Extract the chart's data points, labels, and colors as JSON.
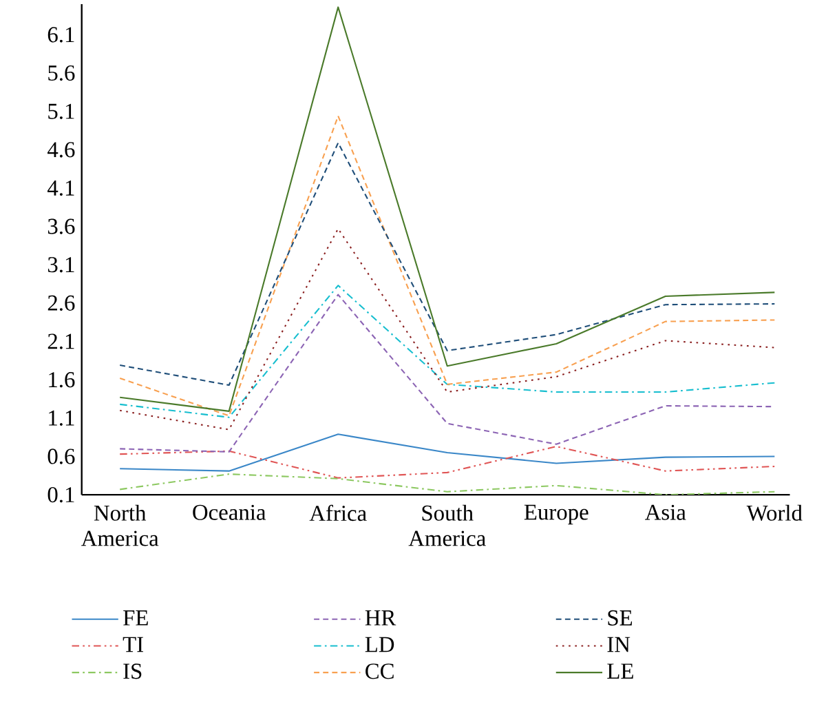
{
  "chart_data": {
    "type": "line",
    "categories": [
      "North America",
      "Oceania",
      "Africa",
      "South America",
      "Europe",
      "Asia",
      "World"
    ],
    "ylim": [
      0.1,
      6.5
    ],
    "yticks": [
      0.1,
      0.6,
      1.1,
      1.6,
      2.1,
      2.6,
      3.1,
      3.6,
      4.1,
      4.6,
      5.1,
      5.6,
      6.1
    ],
    "grid": false,
    "legend": "bottom",
    "marker": "none",
    "series": [
      {
        "name": "FE",
        "color": "#3a87c8",
        "line_style": "solid",
        "values": [
          0.44,
          0.41,
          0.89,
          0.65,
          0.51,
          0.59,
          0.6
        ]
      },
      {
        "name": "TI",
        "color": "#e05555",
        "line_style": "dashdotdot",
        "values": [
          0.63,
          0.67,
          0.32,
          0.39,
          0.73,
          0.41,
          0.47
        ]
      },
      {
        "name": "IS",
        "color": "#8cc860",
        "line_style": "dashdot",
        "values": [
          0.17,
          0.37,
          0.31,
          0.14,
          0.22,
          0.1,
          0.14
        ]
      },
      {
        "name": "HR",
        "color": "#8c64b4",
        "line_style": "dashed",
        "values": [
          0.7,
          0.66,
          2.71,
          1.03,
          0.76,
          1.26,
          1.25
        ]
      },
      {
        "name": "LD",
        "color": "#17becf",
        "line_style": "dashdot",
        "values": [
          1.28,
          1.11,
          2.83,
          1.54,
          1.44,
          1.44,
          1.56
        ]
      },
      {
        "name": "CC",
        "color": "#f8a050",
        "line_style": "dashed",
        "values": [
          1.62,
          1.13,
          5.04,
          1.54,
          1.7,
          2.36,
          2.38
        ]
      },
      {
        "name": "SE",
        "color": "#1f4e79",
        "line_style": "dashed",
        "values": [
          1.79,
          1.53,
          4.69,
          1.98,
          2.19,
          2.58,
          2.59
        ]
      },
      {
        "name": "IN",
        "color": "#8b2020",
        "line_style": "dotted",
        "values": [
          1.2,
          0.95,
          3.57,
          1.44,
          1.64,
          2.11,
          2.02
        ]
      },
      {
        "name": "LE",
        "color": "#4a7a2a",
        "line_style": "solid",
        "values": [
          1.37,
          1.19,
          6.46,
          1.78,
          2.07,
          2.69,
          2.74
        ]
      }
    ]
  }
}
